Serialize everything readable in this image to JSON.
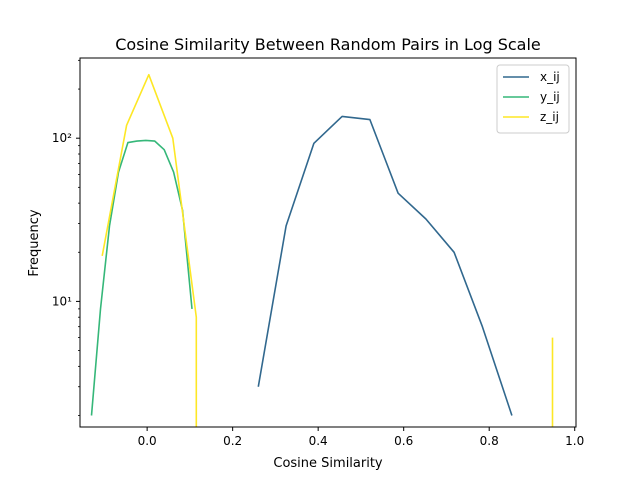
{
  "chart_data": {
    "type": "line",
    "title": "Cosine Similarity Between Random Pairs in Log Scale",
    "xlabel": "Cosine Similarity",
    "ylabel": "Frequency",
    "xlim": [
      -0.157,
      1.003
    ],
    "ylim": [
      1.7,
      310
    ],
    "yscale": "log",
    "grid": false,
    "legend_position": "upper right",
    "x_ticks": [
      0.0,
      0.2,
      0.4,
      0.6,
      0.8,
      1.0
    ],
    "x_tick_labels": [
      "0.0",
      "0.2",
      "0.4",
      "0.6",
      "0.8",
      "1.0"
    ],
    "y_ticks": [
      10,
      100
    ],
    "y_tick_labels": [
      "10¹",
      "10²"
    ],
    "series": [
      {
        "name": "x_ij",
        "color": "#31688e",
        "x": [
          0.26,
          0.325,
          0.39,
          0.456,
          0.521,
          0.587,
          0.652,
          0.718,
          0.784,
          0.853
        ],
        "y": [
          3,
          29,
          93,
          136,
          130,
          46,
          32,
          20,
          7,
          2
        ]
      },
      {
        "name": "y_ij",
        "color": "#35b779",
        "x": [
          -0.13,
          -0.109,
          -0.088,
          -0.067,
          -0.045,
          -0.024,
          -0.003,
          0.018,
          0.04,
          0.062,
          0.083,
          0.105
        ],
        "y": [
          2,
          9,
          29,
          62,
          94,
          96,
          97,
          96,
          85,
          62,
          36,
          9
        ]
      },
      {
        "name": "z_ij",
        "color": "#fde725",
        "x": [
          -0.105,
          -0.048,
          0.004,
          0.06,
          0.115,
          0.115,
          null,
          0.948,
          0.948
        ],
        "y": [
          19,
          120,
          245,
          100,
          8,
          1.5,
          null,
          6,
          1.5
        ]
      }
    ]
  }
}
